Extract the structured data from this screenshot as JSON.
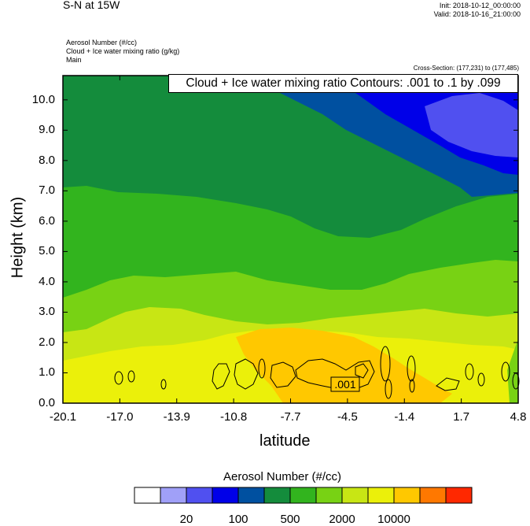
{
  "header": {
    "title": "S-N at 15W",
    "init": "Init: 2018-10-12_00:00:00",
    "valid": "Valid: 2018-10-16_21:00:00",
    "fields": [
      "Aerosol Number   (#/cc)",
      "Cloud + Ice water mixing ratio   (g/kg)",
      "Main"
    ],
    "cross_section": "Cross-Section: (177,231) to (177,485)",
    "contour_info": "Cloud + Ice water mixing ratio Contours: .001 to .1 by .099"
  },
  "chart_data": {
    "type": "heatmap",
    "title": "S-N at 15W",
    "xlabel": "latitude",
    "ylabel": "Height (km)",
    "x_ticks": [
      "-20.1",
      "-17.0",
      "-13.9",
      "-10.8",
      "-7.7",
      "-4.5",
      "-1.4",
      "1.7",
      "4.8"
    ],
    "y_ticks": [
      "0.0",
      "1.0",
      "2.0",
      "3.0",
      "4.0",
      "5.0",
      "6.0",
      "7.0",
      "8.0",
      "9.0",
      "10.0"
    ],
    "xlim": [
      -20.1,
      4.8
    ],
    "ylim": [
      0,
      10.8
    ],
    "colorbar": {
      "title": "Aerosol Number  (#/cc)",
      "colors": [
        "#ffffff",
        "#a0a0f8",
        "#5050f0",
        "#0000e8",
        "#0050a0",
        "#148c3c",
        "#32b41e",
        "#78d214",
        "#c8e614",
        "#ebf00a",
        "#ffc800",
        "#ff7800",
        "#ff2800"
      ],
      "labels": [
        "20",
        "100",
        "500",
        "2000",
        "10000"
      ]
    },
    "contour_label": ".001"
  }
}
